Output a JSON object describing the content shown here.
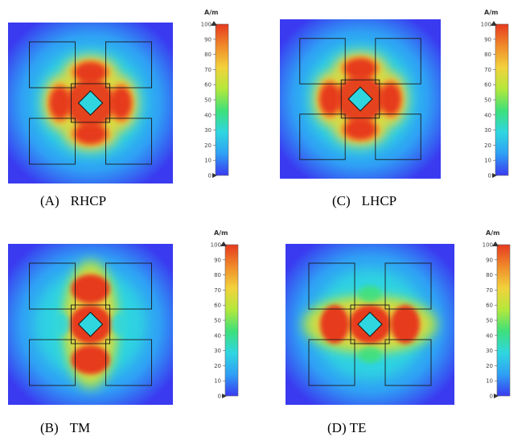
{
  "colorbar": {
    "unit": "A/m",
    "ticks": [
      "100",
      "90",
      "80",
      "70",
      "60",
      "50",
      "40",
      "30",
      "20",
      "10",
      "0"
    ],
    "colors": [
      "#3a3af0",
      "#2fa0f5",
      "#2fd6e0",
      "#3ee07a",
      "#b4e83c",
      "#f2d23c",
      "#f08a2a",
      "#e63a1f"
    ]
  },
  "panels": [
    {
      "id": "A",
      "label": "(A)",
      "name": "RHCP",
      "pattern": "cross"
    },
    {
      "id": "C",
      "label": "(C)",
      "name": "LHCP",
      "pattern": "cross"
    },
    {
      "id": "B",
      "label": "(B)",
      "name": "TM",
      "pattern": "vertical"
    },
    {
      "id": "D",
      "label": "(D)",
      "name": "TE",
      "pattern": "horizontal"
    }
  ]
}
